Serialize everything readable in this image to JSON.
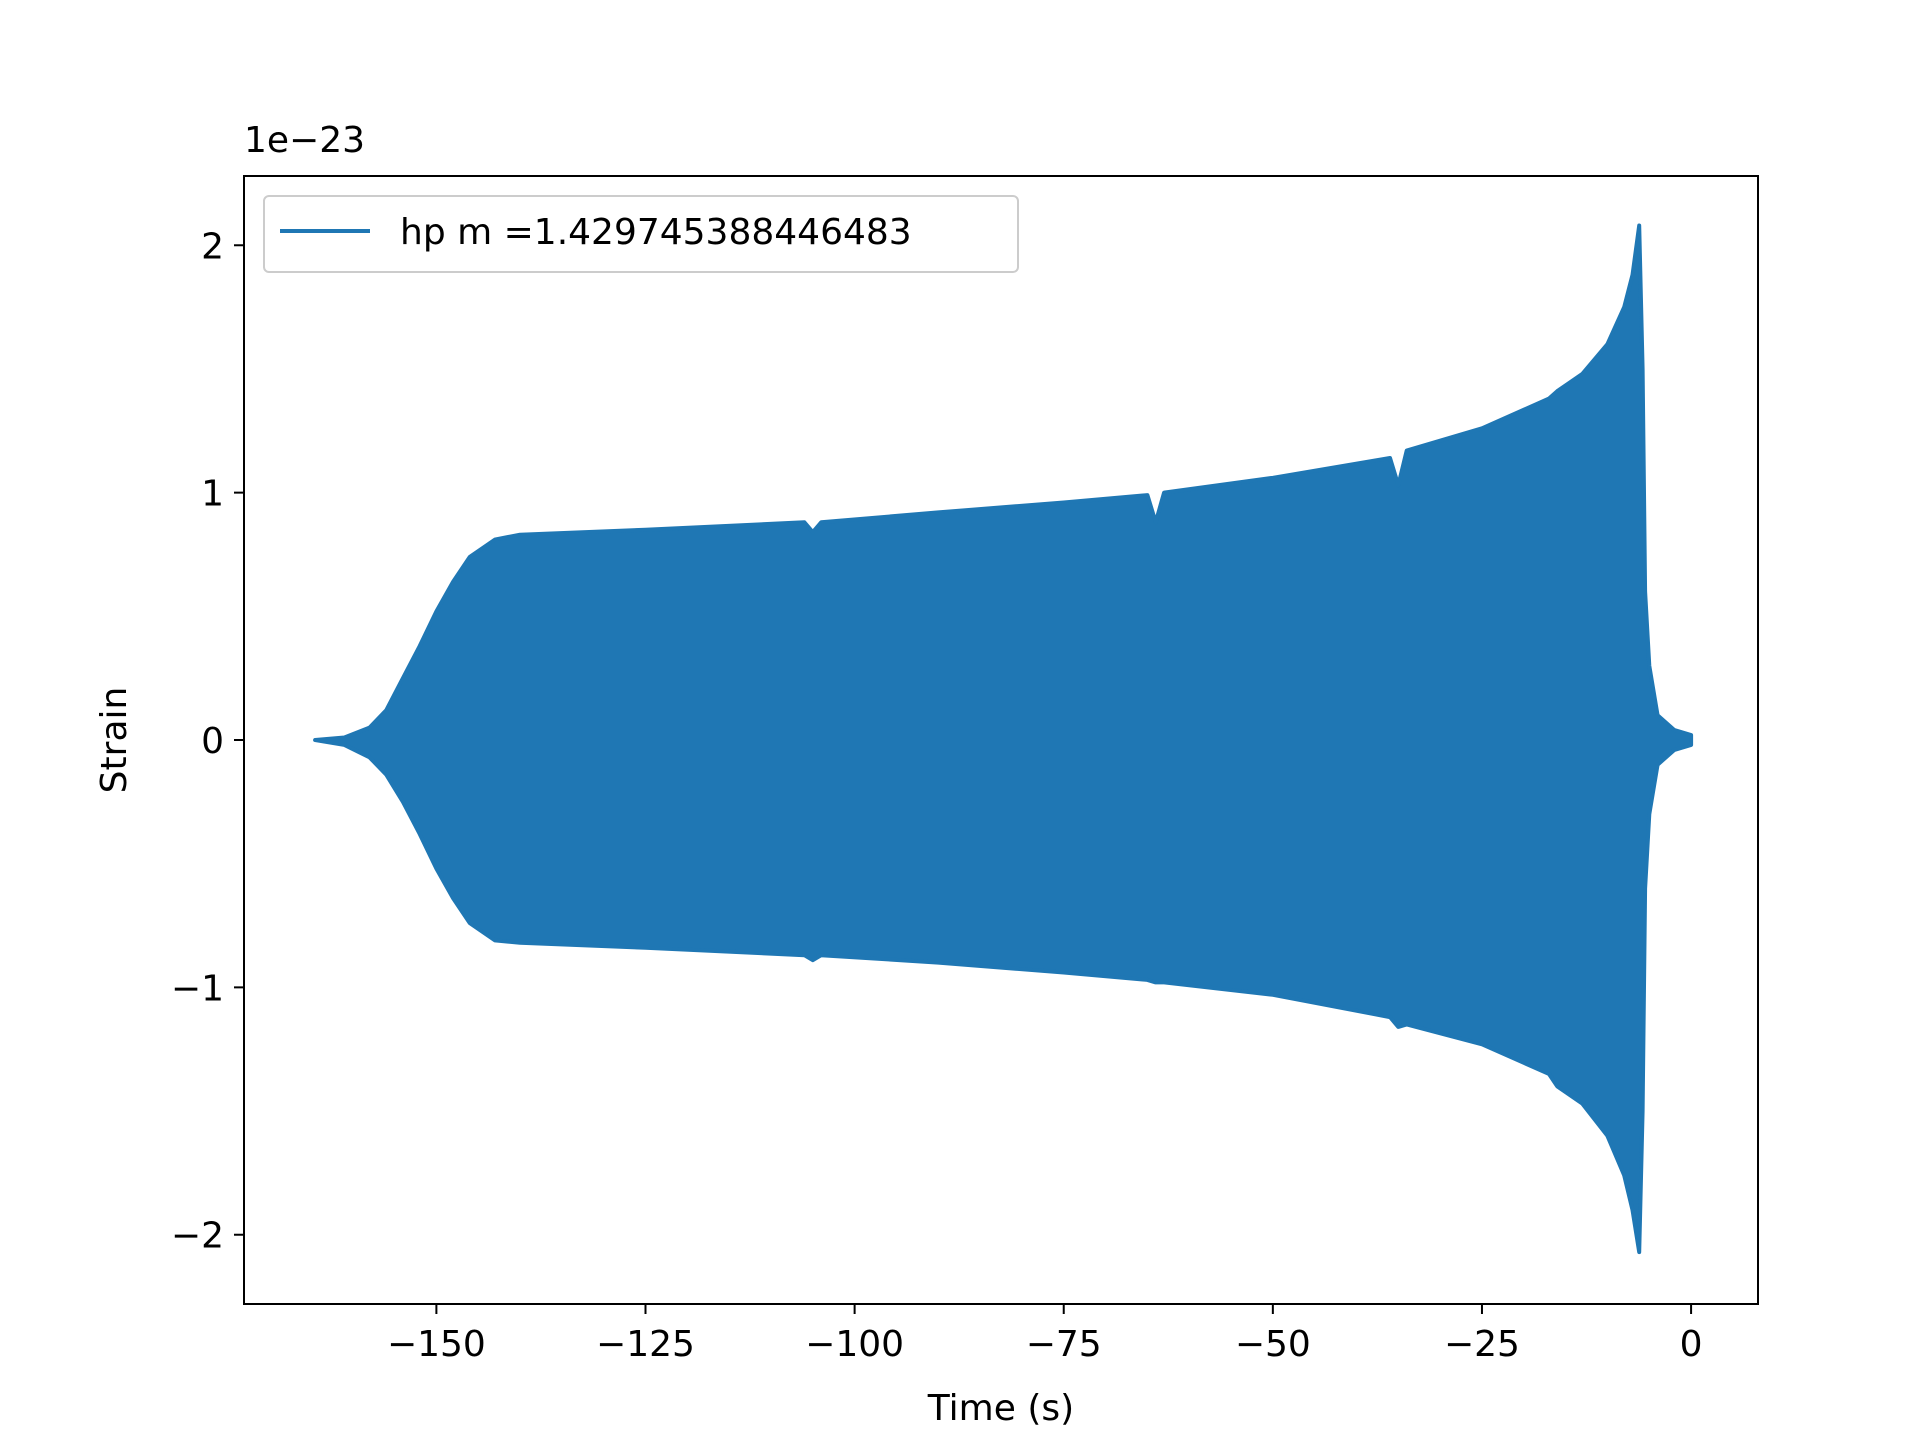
{
  "chart_data": {
    "type": "area",
    "title": "",
    "xlabel": "Time (s)",
    "ylabel": "Strain",
    "y_offset_text": "1e−23",
    "y_scale": 1e-23,
    "xlim": [
      -173,
      8
    ],
    "ylim": [
      -2.28,
      2.28
    ],
    "xticks": [
      -150,
      -125,
      -100,
      -75,
      -50,
      -25,
      0
    ],
    "xtick_labels": [
      "−150",
      "−125",
      "−100",
      "−75",
      "−50",
      "−25",
      "0"
    ],
    "yticks": [
      -2,
      -1,
      0,
      1,
      2
    ],
    "ytick_labels": [
      "−2",
      "−1",
      "0",
      "1",
      "2"
    ],
    "grid": false,
    "legend_position": "upper-left",
    "series": [
      {
        "name": "hp m =1.429745388446483",
        "color": "#1f77b4",
        "description_of_values": "oscillating strain, upper/lower envelope in units of 1e-23",
        "envelope": [
          {
            "t": -164.5,
            "upper": 0.0,
            "lower": 0.0
          },
          {
            "t": -161,
            "upper": 0.01,
            "lower": -0.02
          },
          {
            "t": -158,
            "upper": 0.05,
            "lower": -0.07
          },
          {
            "t": -156,
            "upper": 0.12,
            "lower": -0.14
          },
          {
            "t": -154,
            "upper": 0.25,
            "lower": -0.25
          },
          {
            "t": -152,
            "upper": 0.38,
            "lower": -0.38
          },
          {
            "t": -150,
            "upper": 0.52,
            "lower": -0.52
          },
          {
            "t": -148,
            "upper": 0.64,
            "lower": -0.64
          },
          {
            "t": -146,
            "upper": 0.74,
            "lower": -0.74
          },
          {
            "t": -143,
            "upper": 0.81,
            "lower": -0.81
          },
          {
            "t": -140,
            "upper": 0.83,
            "lower": -0.82
          },
          {
            "t": -125,
            "upper": 0.85,
            "lower": -0.84
          },
          {
            "t": -106,
            "upper": 0.88,
            "lower": -0.87
          },
          {
            "t": -105,
            "upper": 0.84,
            "lower": -0.89
          },
          {
            "t": -104,
            "upper": 0.88,
            "lower": -0.87
          },
          {
            "t": -90,
            "upper": 0.92,
            "lower": -0.9
          },
          {
            "t": -75,
            "upper": 0.96,
            "lower": -0.94
          },
          {
            "t": -65,
            "upper": 0.99,
            "lower": -0.97
          },
          {
            "t": -64,
            "upper": 0.88,
            "lower": -0.98
          },
          {
            "t": -63,
            "upper": 1.0,
            "lower": -0.98
          },
          {
            "t": -50,
            "upper": 1.06,
            "lower": -1.03
          },
          {
            "t": -36,
            "upper": 1.14,
            "lower": -1.12
          },
          {
            "t": -35,
            "upper": 1.03,
            "lower": -1.16
          },
          {
            "t": -34,
            "upper": 1.17,
            "lower": -1.15
          },
          {
            "t": -25,
            "upper": 1.26,
            "lower": -1.23
          },
          {
            "t": -17,
            "upper": 1.38,
            "lower": -1.35
          },
          {
            "t": -16,
            "upper": 1.41,
            "lower": -1.4
          },
          {
            "t": -13,
            "upper": 1.48,
            "lower": -1.47
          },
          {
            "t": -10,
            "upper": 1.6,
            "lower": -1.6
          },
          {
            "t": -8,
            "upper": 1.75,
            "lower": -1.76
          },
          {
            "t": -7,
            "upper": 1.88,
            "lower": -1.9
          },
          {
            "t": -6.2,
            "upper": 2.08,
            "lower": -2.07
          },
          {
            "t": -5.8,
            "upper": 1.5,
            "lower": -1.5
          },
          {
            "t": -5.5,
            "upper": 0.6,
            "lower": -0.6
          },
          {
            "t": -5,
            "upper": 0.3,
            "lower": -0.3
          },
          {
            "t": -4,
            "upper": 0.1,
            "lower": -0.1
          },
          {
            "t": -2,
            "upper": 0.04,
            "lower": -0.04
          },
          {
            "t": 0,
            "upper": 0.02,
            "lower": -0.02
          }
        ]
      }
    ]
  }
}
